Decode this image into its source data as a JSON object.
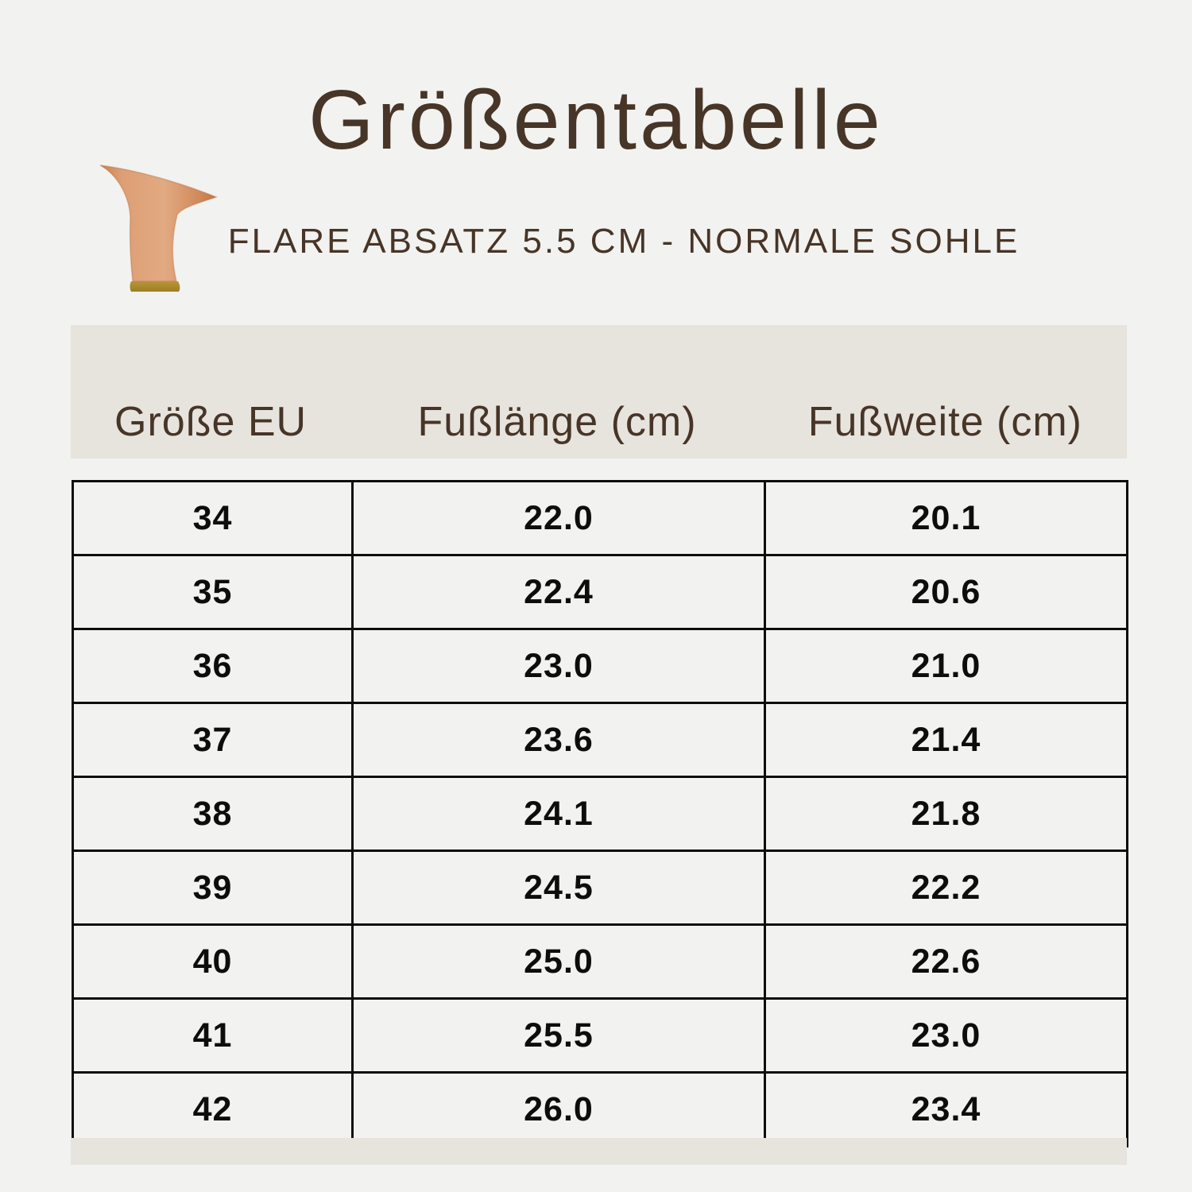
{
  "title": "Größentabelle",
  "subtitle": "FLARE ABSATZ 5.5 CM - NORMALE SOHLE",
  "icon": "flare-heel-icon",
  "table": {
    "headers": [
      "Größe EU",
      "Fußlänge (cm)",
      "Fußweite (cm)"
    ],
    "rows": [
      [
        "34",
        "22.0",
        "20.1"
      ],
      [
        "35",
        "22.4",
        "20.6"
      ],
      [
        "36",
        "23.0",
        "21.0"
      ],
      [
        "37",
        "23.6",
        "21.4"
      ],
      [
        "38",
        "24.1",
        "21.8"
      ],
      [
        "39",
        "24.5",
        "22.2"
      ],
      [
        "40",
        "25.0",
        "22.6"
      ],
      [
        "41",
        "25.5",
        "23.0"
      ],
      [
        "42",
        "26.0",
        "23.4"
      ]
    ]
  },
  "colors": {
    "background": "#f2f2f0",
    "band_beige": "#e7e4de",
    "text_brown": "#473527",
    "table_black": "#0d0d0d",
    "heel_peach": "#d9956b",
    "heel_peach_light": "#e2aa82",
    "heel_peach_dark": "#c57746",
    "heel_gold": "#a8862d"
  }
}
